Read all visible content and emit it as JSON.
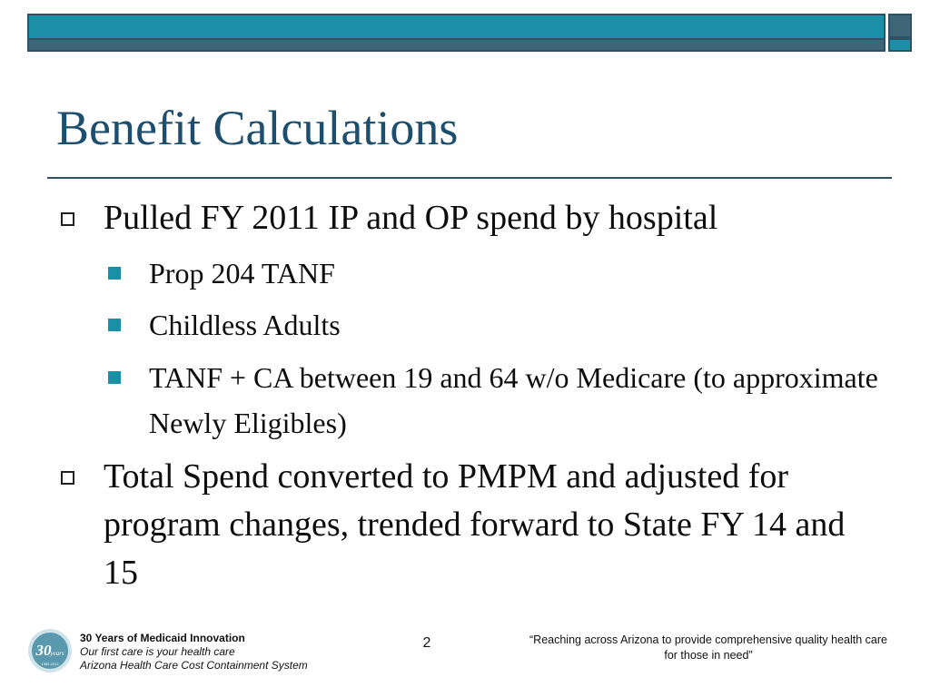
{
  "slide": {
    "title": "Benefit Calculations",
    "page_number": "2"
  },
  "bullets": {
    "b1": "Pulled FY 2011 IP and OP spend by hospital",
    "b1_sub1": "Prop 204 TANF",
    "b1_sub2": "Childless Adults",
    "b1_sub3": "TANF + CA between 19 and 64 w/o Medicare (to approximate Newly Eligibles)",
    "b2": "Total Spend converted to PMPM and adjusted for program changes, trended forward to State FY 14 and 15"
  },
  "footer": {
    "logo_text": "30",
    "logo_sub": "years",
    "logo_years": "1982 2012",
    "left_line1": "30 Years of Medicaid Innovation",
    "left_line2": "Our first care is your health care",
    "left_line3": "Arizona Health Care Cost Containment System",
    "right_quote": "“Reaching across Arizona to provide comprehensive quality health care for those in need”"
  },
  "colors": {
    "accent_teal": "#1b8fa6",
    "dark_slate": "#2d5266",
    "title_blue": "#1d4e6e"
  }
}
